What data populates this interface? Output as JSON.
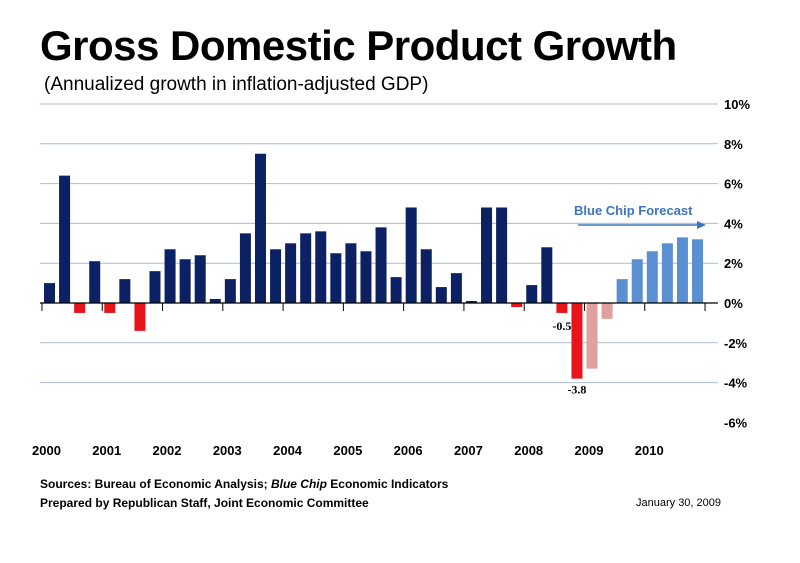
{
  "header": {
    "title": "Gross Domestic Product Growth",
    "subtitle": "(Annualized growth in inflation-adjusted GDP)"
  },
  "colors": {
    "actual": "#0c2163",
    "negative": "#e8141a",
    "forecast_negative": "#e0a09e",
    "forecast": "#5a8fd2",
    "grid": "#a9bcd9",
    "forecast_label": "#3e74c0"
  },
  "chart_data": {
    "type": "bar",
    "title": "Gross Domestic Product Growth",
    "subtitle": "(Annualized growth in inflation-adjusted GDP)",
    "xlabel": "",
    "ylabel": "",
    "ylim": [
      -6,
      10
    ],
    "y_ticks": [
      "10%",
      "8%",
      "6%",
      "4%",
      "2%",
      "0%",
      "-2%",
      "-4%",
      "-6%"
    ],
    "y_tick_values": [
      10,
      8,
      6,
      4,
      2,
      0,
      -2,
      -4,
      -6
    ],
    "grid": true,
    "x_tick_labels": [
      "2000",
      "2001",
      "2002",
      "2003",
      "2004",
      "2005",
      "2006",
      "2007",
      "2008",
      "2009",
      "2010"
    ],
    "quarters_per_label": 4,
    "values": [
      1.0,
      6.4,
      -0.5,
      2.1,
      -0.5,
      1.2,
      -1.4,
      1.6,
      2.7,
      2.2,
      2.4,
      0.2,
      1.2,
      3.5,
      7.5,
      2.7,
      3.0,
      3.5,
      3.6,
      2.5,
      3.0,
      2.6,
      3.8,
      1.3,
      4.8,
      2.7,
      0.8,
      1.5,
      0.1,
      4.8,
      4.8,
      -0.2,
      0.9,
      2.8,
      -0.5,
      -3.8,
      -3.3,
      -0.8,
      1.2,
      2.2,
      2.6,
      3.0,
      3.3,
      3.2
    ],
    "forecast_start_index": 36,
    "data_labels": [
      {
        "index": 34,
        "text": "-0.5"
      },
      {
        "index": 35,
        "text": "-3.8"
      }
    ],
    "annotation": "Blue Chip Forecast"
  },
  "footer": {
    "source_prefix": "Sources: Bureau of Economic Analysis; ",
    "source_italic": "Blue Chip",
    "source_suffix": " Economic Indicators",
    "prepared_by": "Prepared by Republican Staff, Joint Economic Committee",
    "date": "January 30, 2009"
  }
}
